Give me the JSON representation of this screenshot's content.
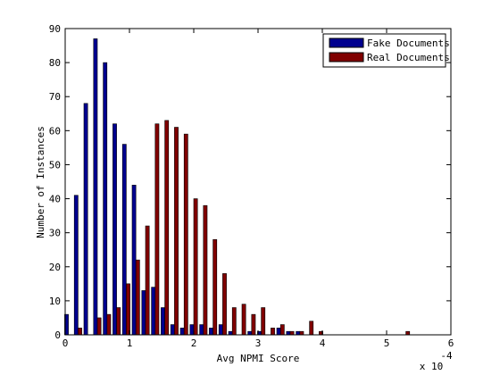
{
  "chart_data": {
    "type": "bar",
    "xlabel": "Avg NPMI Score",
    "ylabel": "Number of Instances",
    "xlim": [
      0,
      6
    ],
    "ylim": [
      0,
      90
    ],
    "xticks": [
      0,
      1,
      2,
      3,
      4,
      5,
      6
    ],
    "yticks": [
      0,
      10,
      20,
      30,
      40,
      50,
      60,
      70,
      80,
      90
    ],
    "x_exponent_base": "x 10",
    "x_exponent_power": "-4",
    "legend_position": "top-right",
    "grid": false,
    "bin_centers": [
      0.05,
      0.2,
      0.35,
      0.5,
      0.65,
      0.8,
      0.95,
      1.1,
      1.25,
      1.4,
      1.55,
      1.7,
      1.85,
      2.0,
      2.15,
      2.3,
      2.45,
      2.6,
      2.75,
      2.9,
      3.05,
      3.2,
      3.35,
      3.5,
      3.65,
      3.8,
      3.95,
      4.1,
      4.25,
      4.4,
      4.55,
      4.7,
      4.85,
      5.0,
      5.15,
      5.3,
      5.45
    ],
    "series": [
      {
        "name": "Fake Documents",
        "color": "#00008f",
        "values": [
          6,
          41,
          68,
          87,
          80,
          62,
          56,
          44,
          13,
          14,
          8,
          3,
          2,
          3,
          3,
          2,
          3,
          1,
          0,
          1,
          1,
          0,
          2,
          1,
          1,
          0,
          0,
          0,
          0,
          0,
          0,
          0,
          0,
          0,
          0,
          0,
          0
        ]
      },
      {
        "name": "Real Documents",
        "color": "#800000",
        "values": [
          0,
          2,
          0,
          5,
          6,
          8,
          15,
          22,
          32,
          62,
          63,
          61,
          59,
          40,
          38,
          28,
          18,
          8,
          9,
          6,
          8,
          2,
          3,
          1,
          1,
          4,
          1,
          0,
          0,
          0,
          0,
          0,
          0,
          0,
          0,
          1,
          0
        ]
      }
    ]
  }
}
